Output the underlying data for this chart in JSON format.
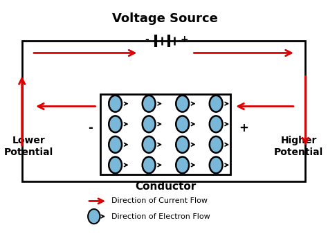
{
  "title": "Voltage Source",
  "bg_color": "#ffffff",
  "current_color": "#dd0000",
  "electron_color": "#7ab8d9",
  "text_color": "#000000",
  "lower_potential_label": "Lower\nPotential",
  "higher_potential_label": "Higher\nPotential",
  "conductor_label": "Conductor",
  "legend_current": "Direction of Current Flow",
  "legend_electron": "Direction of Electron Flow"
}
